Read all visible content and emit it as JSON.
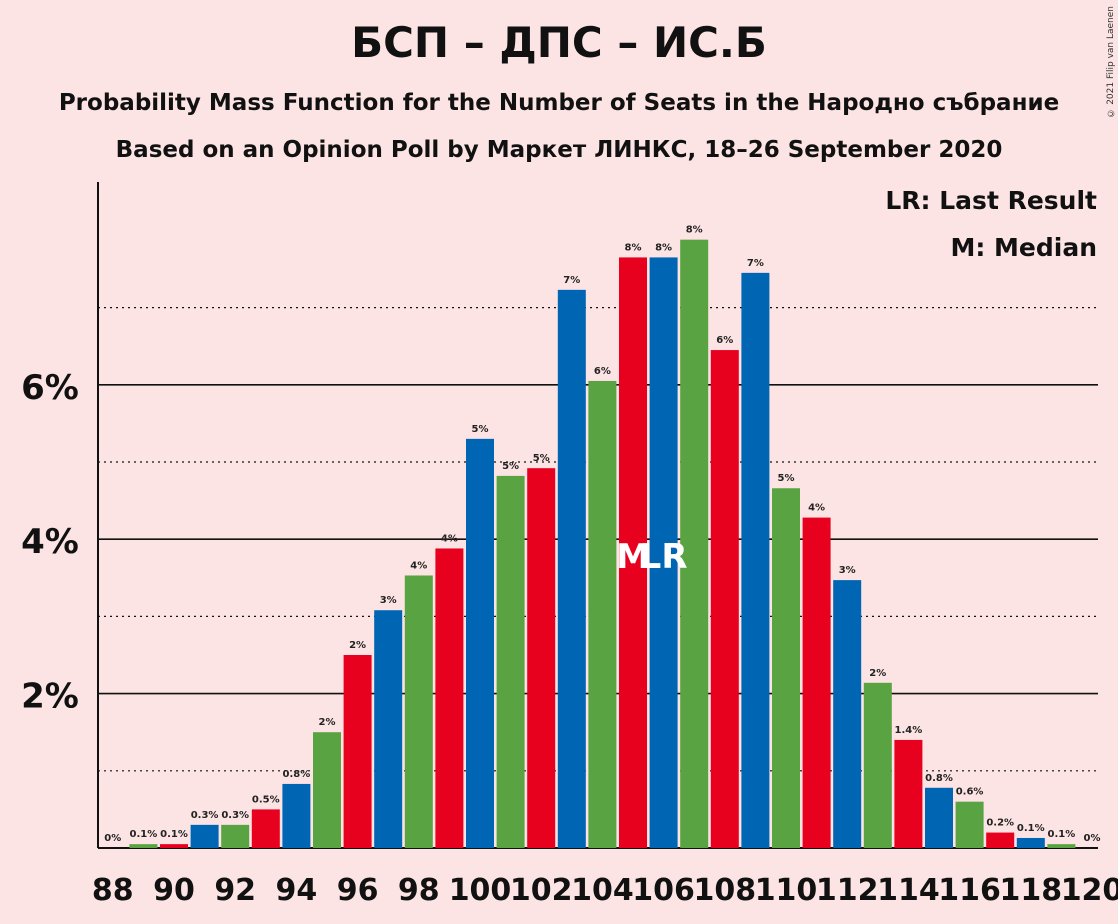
{
  "header": {
    "title": "БСП – ДПС – ИС.Б",
    "subtitle": "Probability Mass Function for the Number of Seats in the Народно събрание",
    "subtitle2": "Based on an Opinion Poll by Маркет ЛИНКС, 18–26 September 2020",
    "copyright": "© 2021 Filip van Laenen"
  },
  "legend": {
    "lr": "LR: Last Result",
    "m": "M: Median"
  },
  "colors": {
    "background": "#fde4e4",
    "bsp": "#e8001f",
    "dps": "#0066b3",
    "isb": "#5aa343"
  },
  "chart_data": {
    "type": "bar",
    "x": [
      88,
      89,
      90,
      91,
      92,
      93,
      94,
      95,
      96,
      97,
      98,
      99,
      100,
      101,
      102,
      103,
      104,
      105,
      106,
      107,
      108,
      109,
      110,
      111,
      112,
      113,
      114,
      115,
      116,
      117,
      118,
      119,
      120
    ],
    "values": [
      0,
      0.05,
      0.05,
      0.3,
      0.3,
      0.5,
      0.83,
      1.5,
      2.5,
      3.08,
      3.53,
      3.88,
      5.3,
      4.82,
      4.92,
      7.23,
      6.05,
      7.65,
      7.65,
      7.88,
      6.45,
      7.45,
      4.66,
      4.28,
      3.47,
      2.14,
      1.4,
      0.78,
      0.6,
      0.2,
      0.13,
      0.05,
      0
    ],
    "labels": [
      "0%",
      "0.1%",
      "0.1%",
      "0.3%",
      "0.3%",
      "0.5%",
      "0.8%",
      "2%",
      "2%",
      "3%",
      "4%",
      "4%",
      "5%",
      "5%",
      "5%",
      "7%",
      "6%",
      "8%",
      "8%",
      "8%",
      "6%",
      "7%",
      "5%",
      "4%",
      "3%",
      "2%",
      "1.4%",
      "0.8%",
      "0.6%",
      "0.2%",
      "0.1%",
      "0.1%",
      "0%"
    ],
    "bar_colors": [
      "dps",
      "isb",
      "bsp",
      "dps",
      "isb",
      "bsp",
      "dps",
      "isb",
      "bsp",
      "dps",
      "isb",
      "bsp",
      "dps",
      "isb",
      "bsp",
      "dps",
      "isb",
      "bsp",
      "dps",
      "isb",
      "bsp",
      "dps",
      "isb",
      "bsp",
      "dps",
      "isb",
      "bsp",
      "dps",
      "isb",
      "bsp",
      "dps",
      "isb",
      "bsp"
    ],
    "x_tick_labels": [
      "88",
      "90",
      "92",
      "94",
      "96",
      "98",
      "100",
      "102",
      "104",
      "106",
      "108",
      "110",
      "112",
      "114",
      "116",
      "118",
      "120"
    ],
    "y_tick_labels": [
      "2%",
      "4%",
      "6%"
    ],
    "y_ticks": [
      2,
      4,
      6
    ],
    "ylim": [
      0,
      8.6
    ],
    "median_seat": 105,
    "last_result_seat": 106,
    "median_marker": "M",
    "last_result_marker": "LR",
    "grid": true
  }
}
